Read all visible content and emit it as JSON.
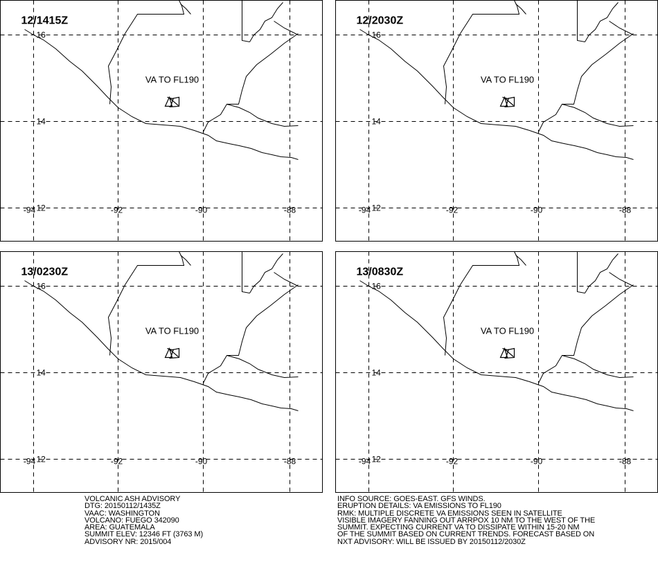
{
  "panels": [
    {
      "time": "12/1415Z",
      "annotation": "VA TO FL190"
    },
    {
      "time": "12/2030Z",
      "annotation": "VA TO FL190"
    },
    {
      "time": "13/0230Z",
      "annotation": "VA TO FL190"
    },
    {
      "time": "13/0830Z",
      "annotation": "VA TO FL190"
    }
  ],
  "grid_labels": {
    "lat": [
      "16",
      "14",
      "12"
    ],
    "lon": [
      "-94",
      "-92",
      "-90",
      "-88"
    ]
  },
  "advisory_left": [
    "VOLCANIC ASH ADVISORY",
    "DTG: 20150112/1435Z",
    "VAAC: WASHINGTON",
    "VOLCANO: FUEGO 342090",
    "AREA: GUATEMALA",
    "SUMMIT ELEV: 12346 FT (3763 M)",
    "ADVISORY NR: 2015/004"
  ],
  "advisory_right": [
    "INFO SOURCE: GOES-EAST. GFS WINDS.",
    "ERUPTION DETAILS: VA EMISSIONS TO FL190",
    "RMK: MULTIPLE DISCRETE VA EMISSIONS SEEN IN SATELLITE",
    "VISIBLE IMAGERY FANNING OUT ARRPOX 10 NM TO THE WEST OF THE",
    "SUMMIT. EXPECTING CURRENT VA TO DISSIPATE WITHIN 15-20 NM",
    "OF THE SUMMIT BASED ON CURRENT TRENDS. FORECAST BASED ON",
    "NXT ADVISORY: WILL BE ISSUED BY 20150112/2030Z"
  ]
}
